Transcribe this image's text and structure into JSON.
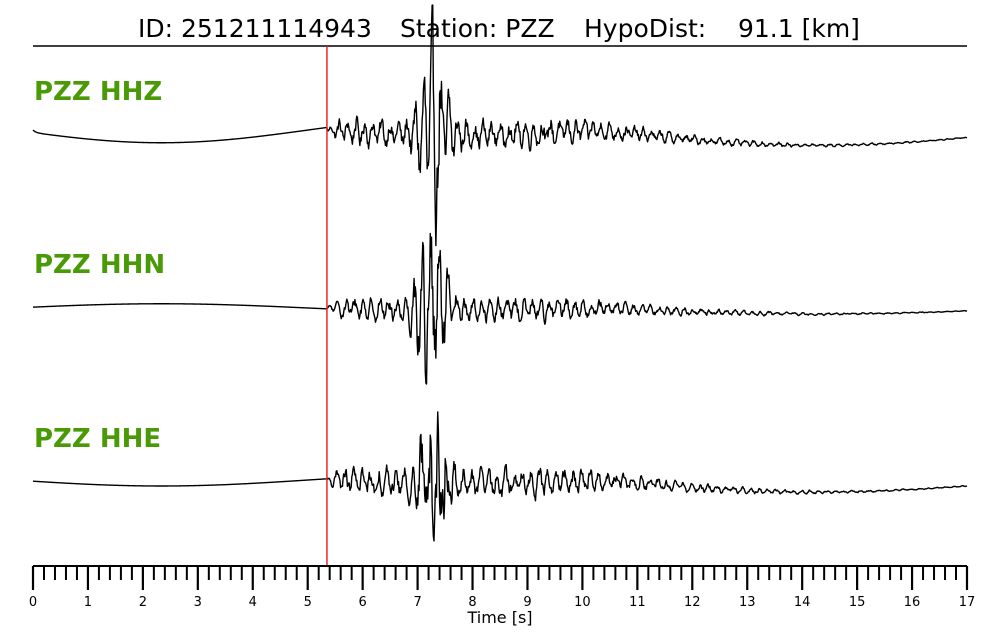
{
  "header": {
    "id_text": "ID: 251211114943",
    "station_text": "Station: PZZ",
    "hypodist_text": "HypoDist:    91.1 [km]"
  },
  "colors": {
    "trace": "#000000",
    "pick_line": "#e8262a",
    "channel_label": "#4a9a07",
    "axis": "#000000"
  },
  "chart_data": {
    "type": "line",
    "title": "ID: 251211114943   Station: PZZ   HypoDist:    91.1 [km]",
    "xlabel": "Time [s]",
    "ylabel": "",
    "xlim": [
      0,
      17
    ],
    "x_ticks": [
      "0",
      "1",
      "2",
      "3",
      "4",
      "5",
      "6",
      "7",
      "8",
      "9",
      "10",
      "11",
      "12",
      "13",
      "14",
      "15",
      "16",
      "17"
    ],
    "minor_tick_step": 0.2,
    "grid": false,
    "legend": "none",
    "p_pick_time": 5.35,
    "series": [
      {
        "name": "PZZ HHZ",
        "pre_event_wave": -0.15,
        "pre_event_start": 0.03,
        "noise_amp": 0.18,
        "peak_amp": 0.95,
        "peak_time": 7.3,
        "coda_swell": 0.18
      },
      {
        "name": "PZZ HHN",
        "pre_event_wave": 0.05,
        "pre_event_start": 0.0,
        "noise_amp": 0.14,
        "peak_amp": 0.95,
        "peak_time": 7.25,
        "coda_swell": 0.07
      },
      {
        "name": "PZZ HHE",
        "pre_event_wave": -0.08,
        "pre_event_start": 0.0,
        "noise_amp": 0.2,
        "peak_amp": 0.95,
        "peak_time": 7.3,
        "coda_swell": 0.16
      }
    ]
  }
}
